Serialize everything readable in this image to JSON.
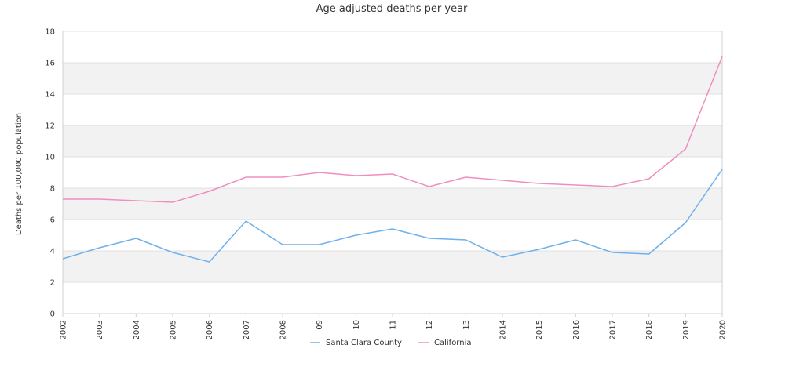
{
  "chart_data": {
    "type": "line",
    "title": "Age adjusted deaths per year",
    "xlabel": "",
    "ylabel": "Deaths per 100,000 population",
    "categories": [
      "2002",
      "2003",
      "2004",
      "2005",
      "2006",
      "2007",
      "2008",
      "09",
      "10",
      "11",
      "12",
      "13",
      "2014",
      "2015",
      "2016",
      "2017",
      "2018",
      "2019",
      "2020"
    ],
    "ylim": [
      0,
      18
    ],
    "yticks": [
      0,
      2,
      4,
      6,
      8,
      10,
      12,
      14,
      16,
      18
    ],
    "grid": "horizontal alternating bands",
    "legend_position": "bottom-center",
    "series": [
      {
        "name": "Santa Clara County",
        "color": "#6fb1ec",
        "values": [
          3.5,
          4.2,
          4.8,
          3.9,
          3.3,
          5.9,
          4.4,
          4.4,
          5.0,
          5.4,
          4.8,
          4.7,
          3.6,
          4.1,
          4.7,
          3.9,
          3.8,
          5.8,
          9.2
        ]
      },
      {
        "name": "California",
        "color": "#ef8fbd",
        "values": [
          7.3,
          7.3,
          7.2,
          7.1,
          7.8,
          8.7,
          8.7,
          9.0,
          8.8,
          8.9,
          8.1,
          8.7,
          8.5,
          8.3,
          8.2,
          8.1,
          8.6,
          10.5,
          16.4
        ]
      }
    ]
  },
  "colors": {
    "band_fill": "#f2f2f2",
    "grid_line": "#e0e0e0",
    "axis_line": "#d0d0d0"
  }
}
